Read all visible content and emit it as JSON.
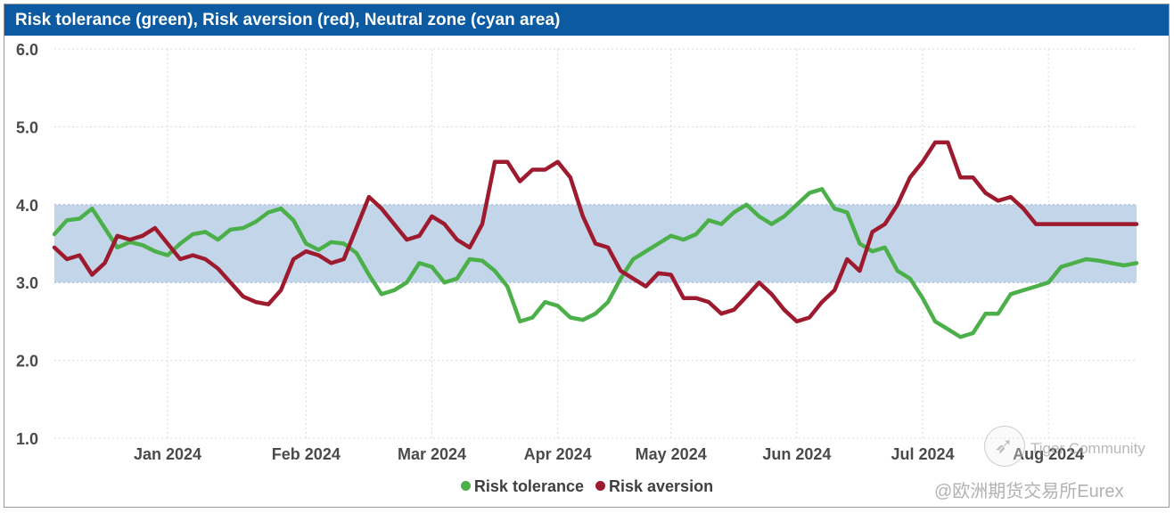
{
  "chart_data": {
    "type": "line",
    "title": "Risk tolerance (green), Risk aversion (red), Neutral zone (cyan area)",
    "xlabel": "",
    "ylabel": "",
    "ylim": [
      1.0,
      6.0
    ],
    "yticks": [
      "6.0",
      "5.0",
      "4.0",
      "3.0",
      "2.0",
      "1.0"
    ],
    "ytick_values": [
      6.0,
      5.0,
      4.0,
      3.0,
      2.0,
      1.0
    ],
    "xlim": [
      0,
      86
    ],
    "xticks": [
      "Jan 2024",
      "Feb 2024",
      "Mar 2024",
      "Apr 2024",
      "May 2024",
      "Jun 2024",
      "Jul 2024",
      "Aug 2024"
    ],
    "xtick_positions": [
      9,
      20,
      30,
      40,
      49,
      59,
      69,
      79
    ],
    "grid": true,
    "neutral_zone": {
      "low": 3.0,
      "high": 4.0,
      "color": "#c3d5e9"
    },
    "series": [
      {
        "name": "Risk tolerance",
        "color": "#4bb04a",
        "x": [
          0,
          1,
          2,
          3,
          4,
          5,
          6,
          7,
          8,
          9,
          10,
          11,
          12,
          13,
          14,
          15,
          16,
          17,
          18,
          19,
          20,
          21,
          22,
          23,
          24,
          25,
          26,
          27,
          28,
          29,
          30,
          31,
          32,
          33,
          34,
          35,
          36,
          37,
          38,
          39,
          40,
          41,
          42,
          43,
          44,
          45,
          46,
          47,
          48,
          49,
          50,
          51,
          52,
          53,
          54,
          55,
          56,
          57,
          58,
          59,
          60,
          61,
          62,
          63,
          64,
          65,
          66,
          67,
          68,
          69,
          70,
          71,
          72,
          73,
          74,
          75,
          76,
          77,
          78,
          79,
          80,
          81,
          82,
          83,
          84,
          85,
          86
        ],
        "values": [
          3.62,
          3.8,
          3.82,
          3.95,
          3.7,
          3.45,
          3.52,
          3.48,
          3.4,
          3.35,
          3.5,
          3.62,
          3.65,
          3.55,
          3.68,
          3.7,
          3.78,
          3.9,
          3.95,
          3.8,
          3.5,
          3.42,
          3.52,
          3.5,
          3.38,
          3.1,
          2.85,
          2.9,
          3.0,
          3.25,
          3.2,
          3.0,
          3.05,
          3.3,
          3.28,
          3.15,
          2.95,
          2.5,
          2.55,
          2.75,
          2.7,
          2.55,
          2.52,
          2.6,
          2.75,
          3.05,
          3.3,
          3.4,
          3.5,
          3.6,
          3.55,
          3.62,
          3.8,
          3.75,
          3.9,
          4.0,
          3.85,
          3.75,
          3.85,
          4.0,
          4.15,
          4.2,
          3.95,
          3.9,
          3.5,
          3.4,
          3.45,
          3.15,
          3.05,
          2.8,
          2.5,
          2.4,
          2.3,
          2.35,
          2.6,
          2.6,
          2.85,
          2.9,
          2.95,
          3.0,
          3.2,
          3.25,
          3.3,
          3.28,
          3.25,
          3.22,
          3.25
        ]
      },
      {
        "name": "Risk aversion",
        "color": "#9e1a2e",
        "x": [
          0,
          1,
          2,
          3,
          4,
          5,
          6,
          7,
          8,
          9,
          10,
          11,
          12,
          13,
          14,
          15,
          16,
          17,
          18,
          19,
          20,
          21,
          22,
          23,
          24,
          25,
          26,
          27,
          28,
          29,
          30,
          31,
          32,
          33,
          34,
          35,
          36,
          37,
          38,
          39,
          40,
          41,
          42,
          43,
          44,
          45,
          46,
          47,
          48,
          49,
          50,
          51,
          52,
          53,
          54,
          55,
          56,
          57,
          58,
          59,
          60,
          61,
          62,
          63,
          64,
          65,
          66,
          67,
          68,
          69,
          70,
          71,
          72,
          73,
          74,
          75,
          76,
          77,
          78,
          79,
          80,
          81,
          82,
          83,
          84,
          85,
          86
        ],
        "values": [
          3.45,
          3.3,
          3.35,
          3.1,
          3.25,
          3.6,
          3.55,
          3.6,
          3.7,
          3.5,
          3.3,
          3.35,
          3.3,
          3.18,
          3.0,
          2.82,
          2.75,
          2.72,
          2.9,
          3.3,
          3.4,
          3.35,
          3.25,
          3.3,
          3.7,
          4.1,
          3.95,
          3.75,
          3.55,
          3.6,
          3.85,
          3.75,
          3.55,
          3.45,
          3.75,
          4.55,
          4.55,
          4.3,
          4.45,
          4.45,
          4.55,
          4.35,
          3.85,
          3.5,
          3.45,
          3.15,
          3.05,
          2.95,
          3.12,
          3.1,
          2.8,
          2.8,
          2.75,
          2.6,
          2.65,
          2.82,
          3.0,
          2.85,
          2.65,
          2.5,
          2.55,
          2.75,
          2.9,
          3.3,
          3.15,
          3.65,
          3.75,
          4.0,
          4.35,
          4.55,
          4.8,
          4.8,
          4.35,
          4.35,
          4.15,
          4.05,
          4.1,
          3.95,
          3.75,
          3.75,
          3.75,
          3.75,
          3.75,
          3.75,
          3.75,
          3.75,
          3.75
        ]
      }
    ]
  },
  "legend": {
    "items": [
      {
        "label": "Risk tolerance",
        "color": "#4bb04a"
      },
      {
        "label": "Risk aversion",
        "color": "#9e1a2e"
      }
    ]
  },
  "watermark": {
    "line1": "Tiger Community",
    "line2": "@欧洲期货交易所Eurex"
  }
}
